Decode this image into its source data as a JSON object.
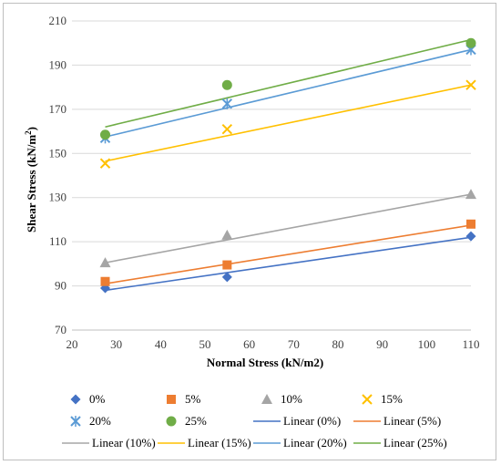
{
  "chart_data": {
    "type": "scatter",
    "title": "",
    "xlabel": "Normal Stress (kN/m2)",
    "ylabel_main": "Shear Stress (kN/m",
    "ylabel_sup": "2",
    "ylabel_end": ")",
    "xlim": [
      20,
      110
    ],
    "ylim": [
      70,
      210
    ],
    "xticks": [
      20,
      30,
      40,
      50,
      60,
      70,
      80,
      90,
      100,
      110
    ],
    "yticks": [
      70,
      90,
      110,
      130,
      150,
      170,
      190,
      210
    ],
    "grid": "horizontal",
    "legend_position": "bottom",
    "series": [
      {
        "name": "0%",
        "marker": "diamond",
        "color": "#4472c4",
        "x": [
          27.5,
          55,
          110
        ],
        "y": [
          89,
          94,
          112.5
        ]
      },
      {
        "name": "5%",
        "marker": "square",
        "color": "#ed7d31",
        "x": [
          27.5,
          55,
          110
        ],
        "y": [
          92,
          99.5,
          118
        ]
      },
      {
        "name": "10%",
        "marker": "triangle",
        "color": "#a5a5a5",
        "x": [
          27.5,
          55,
          110
        ],
        "y": [
          100.5,
          113,
          131.5
        ]
      },
      {
        "name": "15%",
        "marker": "x",
        "color": "#ffc000",
        "x": [
          27.5,
          55,
          110
        ],
        "y": [
          145.5,
          161,
          181
        ]
      },
      {
        "name": "20%",
        "marker": "star",
        "color": "#5b9bd5",
        "x": [
          27.5,
          55,
          110
        ],
        "y": [
          157,
          172.5,
          197
        ]
      },
      {
        "name": "25%",
        "marker": "circle",
        "color": "#70ad47",
        "x": [
          27.5,
          55,
          110
        ],
        "y": [
          158.5,
          181,
          200
        ]
      }
    ],
    "trendlines": [
      {
        "name": "Linear (0%)",
        "color": "#4472c4",
        "x": [
          27.5,
          110
        ],
        "y": [
          88,
          112
        ]
      },
      {
        "name": "Linear (5%)",
        "color": "#ed7d31",
        "x": [
          27.5,
          110
        ],
        "y": [
          91,
          117.5
        ]
      },
      {
        "name": "Linear (10%)",
        "color": "#a5a5a5",
        "x": [
          27.5,
          110
        ],
        "y": [
          100.5,
          131.5
        ]
      },
      {
        "name": "Linear (15%)",
        "color": "#ffc000",
        "x": [
          27.5,
          110
        ],
        "y": [
          146.5,
          181
        ]
      },
      {
        "name": "Linear (20%)",
        "color": "#5b9bd5",
        "x": [
          27.5,
          110
        ],
        "y": [
          157.5,
          197
        ]
      },
      {
        "name": "Linear (25%)",
        "color": "#70ad47",
        "x": [
          27.5,
          110
        ],
        "y": [
          162,
          201.5
        ]
      }
    ]
  }
}
